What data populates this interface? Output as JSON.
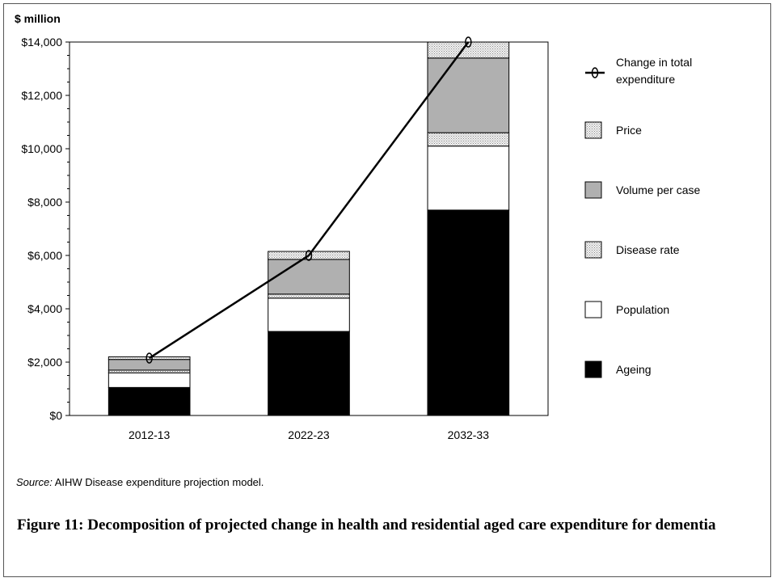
{
  "chart_data": {
    "type": "bar",
    "stacked": true,
    "ylabel": "$ million",
    "ylim": [
      0,
      14000
    ],
    "yticks": [
      "$0",
      "$2,000",
      "$4,000",
      "$6,000",
      "$8,000",
      "$10,000",
      "$12,000",
      "$14,000"
    ],
    "ytick_values": [
      0,
      2000,
      4000,
      6000,
      8000,
      10000,
      12000,
      14000
    ],
    "categories": [
      "2012-13",
      "2022-23",
      "2032-33"
    ],
    "series": [
      {
        "name": "Ageing",
        "values": [
          1050,
          3150,
          7700
        ],
        "color": "#000000",
        "pattern": "solid"
      },
      {
        "name": "Population",
        "values": [
          550,
          1250,
          2400
        ],
        "color": "#ffffff",
        "pattern": "solid"
      },
      {
        "name": "Disease rate",
        "values": [
          100,
          150,
          500
        ],
        "color": "#e4e4e4",
        "pattern": "dots"
      },
      {
        "name": "Volume per case",
        "values": [
          400,
          1300,
          2800
        ],
        "color": "#b0b0b0",
        "pattern": "solid"
      },
      {
        "name": "Price",
        "values": [
          100,
          300,
          600
        ],
        "color": "#e4e4e4",
        "pattern": "dots"
      }
    ],
    "line": {
      "name": "Change in total expenditure",
      "values": [
        2150,
        6000,
        14000
      ]
    },
    "legend_order": [
      "Change in total expenditure",
      "Price",
      "Volume per case",
      "Disease rate",
      "Population",
      "Ageing"
    ],
    "legend_position": "right",
    "grid": false
  },
  "source": {
    "label": "Source:",
    "text": "AIHW Disease expenditure projection model."
  },
  "caption": "Figure 11: Decomposition of projected change in health and residential aged care expenditure for dementia"
}
